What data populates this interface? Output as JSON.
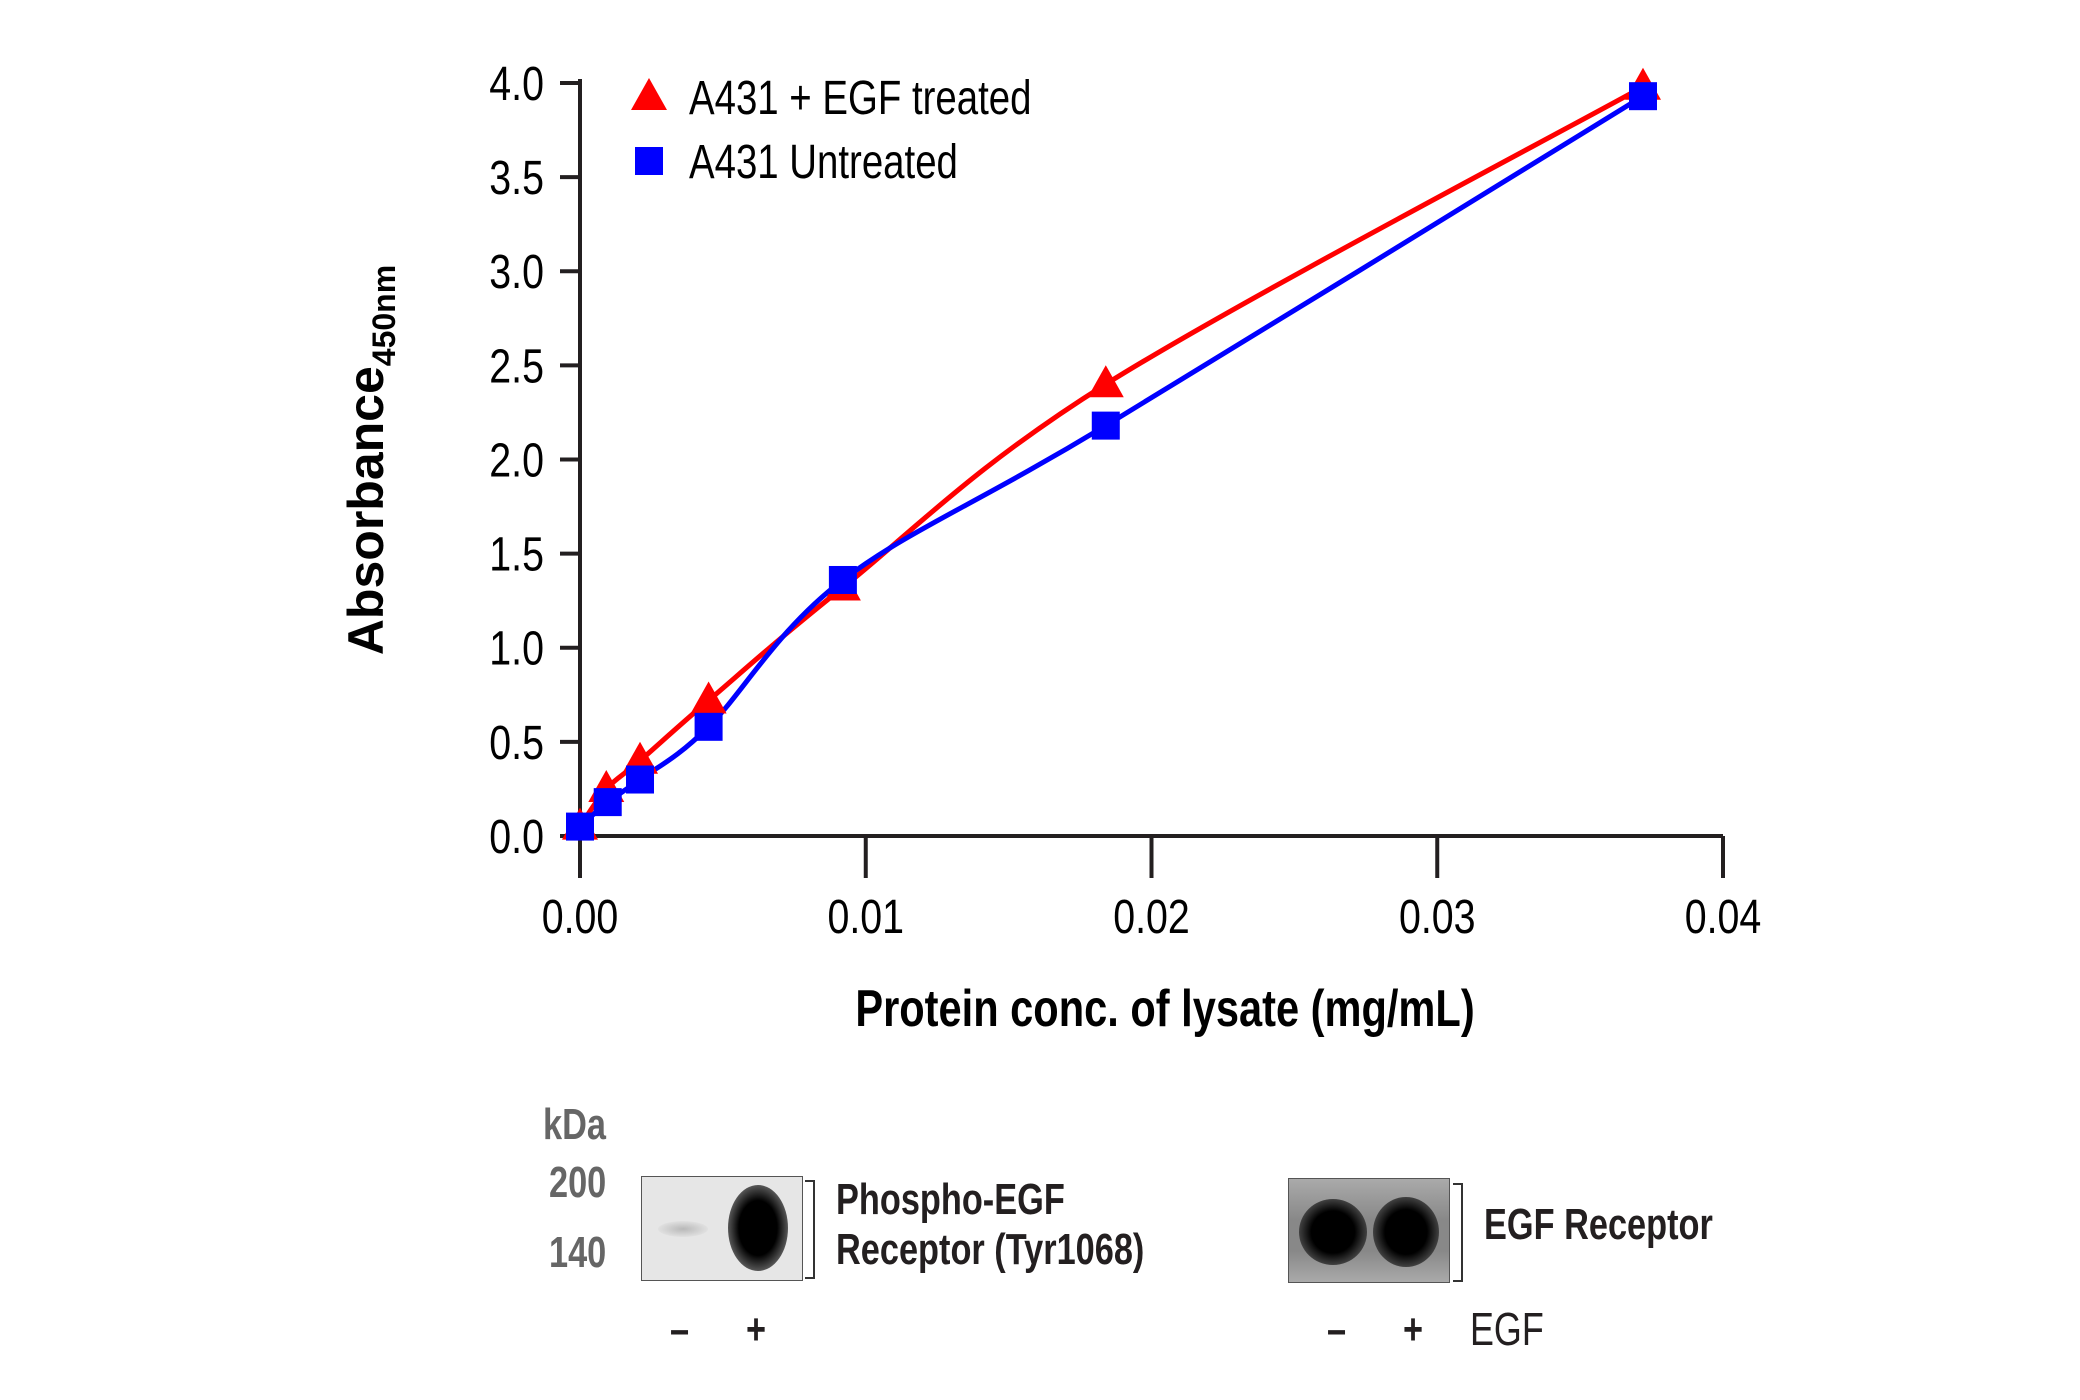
{
  "chart_data": {
    "type": "line",
    "xlabel": "Protein conc. of lysate (mg/mL)",
    "ylabel": "Absorbance",
    "ylabel_subscript": "450nm",
    "xlim": [
      0,
      0.04
    ],
    "ylim": [
      0,
      4.0
    ],
    "xticks": [
      "0.00",
      "0.01",
      "0.02",
      "0.03",
      "0.04"
    ],
    "yticks": [
      "0.0",
      "0.5",
      "1.0",
      "1.5",
      "2.0",
      "2.5",
      "3.0",
      "3.5",
      "4.0"
    ],
    "grid": false,
    "legend_position": "top-left",
    "series": [
      {
        "name": "A431 + EGF treated",
        "marker": "triangle",
        "color": "#ff0000",
        "x": [
          0,
          0.00092,
          0.0021,
          0.0045,
          0.0092,
          0.0184,
          0.0372
        ],
        "y": [
          0.05,
          0.25,
          0.4,
          0.72,
          1.32,
          2.4,
          3.98
        ]
      },
      {
        "name": "A431 Untreated",
        "marker": "square",
        "color": "#0000ff",
        "x": [
          0,
          0.00097,
          0.0021,
          0.0045,
          0.0092,
          0.0184,
          0.0372
        ],
        "y": [
          0.05,
          0.18,
          0.3,
          0.58,
          1.36,
          2.18,
          3.93
        ]
      }
    ]
  },
  "blot": {
    "kda_label": "kDa",
    "markers": [
      "200",
      "140"
    ],
    "panels": [
      {
        "label_line1": "Phospho-EGF",
        "label_line2": "Receptor (Tyr1068)",
        "lanes": [
          "–",
          "+"
        ]
      },
      {
        "label_line1": "EGF Receptor",
        "lanes": [
          "–",
          "+"
        ],
        "lane_header": "EGF"
      }
    ]
  }
}
